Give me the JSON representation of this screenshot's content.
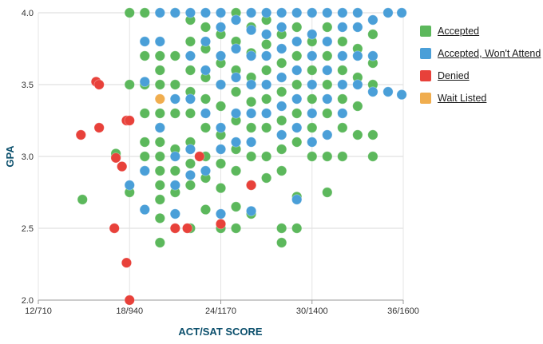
{
  "chart_data": {
    "type": "scatter",
    "xlabel": "ACT/SAT SCORE",
    "ylabel": "GPA",
    "xlim": [
      12,
      36
    ],
    "ylim": [
      2.0,
      4.0
    ],
    "x_ticks": [
      12,
      18,
      24,
      30,
      36
    ],
    "x_tick_labels": [
      "12/710",
      "18/940",
      "24/1170",
      "30/1400",
      "36/1600"
    ],
    "y_ticks": [
      2.0,
      2.5,
      3.0,
      3.5,
      4.0
    ],
    "y_tick_labels": [
      "2.0",
      "2.5",
      "3.0",
      "3.5",
      "4.0"
    ],
    "grid": true,
    "legend_position": "right",
    "series": [
      {
        "name": "Accepted",
        "color": "#5cb85c",
        "points": [
          [
            14.9,
            2.7
          ],
          [
            17.1,
            3.0
          ],
          [
            17.1,
            3.02
          ],
          [
            18.0,
            2.75
          ],
          [
            18.0,
            3.5
          ],
          [
            18.0,
            4.0
          ],
          [
            19.0,
            2.9
          ],
          [
            19.0,
            3.0
          ],
          [
            19.0,
            3.1
          ],
          [
            19.0,
            3.3
          ],
          [
            19.0,
            3.5
          ],
          [
            19.0,
            3.7
          ],
          [
            19.0,
            4.0
          ],
          [
            20.0,
            2.4
          ],
          [
            20.0,
            2.57
          ],
          [
            20.0,
            2.7
          ],
          [
            20.0,
            2.8
          ],
          [
            20.0,
            2.9
          ],
          [
            20.0,
            3.0
          ],
          [
            20.0,
            3.1
          ],
          [
            20.0,
            3.2
          ],
          [
            20.0,
            3.3
          ],
          [
            20.0,
            3.5
          ],
          [
            20.0,
            3.6
          ],
          [
            20.0,
            3.7
          ],
          [
            21.0,
            2.75
          ],
          [
            21.0,
            2.9
          ],
          [
            21.0,
            3.05
          ],
          [
            21.0,
            3.3
          ],
          [
            21.0,
            3.5
          ],
          [
            21.0,
            3.7
          ],
          [
            21.0,
            4.0
          ],
          [
            22.0,
            2.5
          ],
          [
            22.0,
            2.8
          ],
          [
            22.0,
            2.95
          ],
          [
            22.0,
            3.1
          ],
          [
            22.0,
            3.3
          ],
          [
            22.0,
            3.45
          ],
          [
            22.0,
            3.6
          ],
          [
            22.0,
            3.8
          ],
          [
            22.0,
            3.95
          ],
          [
            23.0,
            2.63
          ],
          [
            23.0,
            2.85
          ],
          [
            23.0,
            3.0
          ],
          [
            23.0,
            3.2
          ],
          [
            23.0,
            3.4
          ],
          [
            23.0,
            3.55
          ],
          [
            23.0,
            3.75
          ],
          [
            23.0,
            3.9
          ],
          [
            24.0,
            2.5
          ],
          [
            24.0,
            2.78
          ],
          [
            24.0,
            2.95
          ],
          [
            24.0,
            3.15
          ],
          [
            24.0,
            3.35
          ],
          [
            24.0,
            3.5
          ],
          [
            24.0,
            3.65
          ],
          [
            24.0,
            3.85
          ],
          [
            25.0,
            2.5
          ],
          [
            25.0,
            2.65
          ],
          [
            25.0,
            2.9
          ],
          [
            25.0,
            3.05
          ],
          [
            25.0,
            3.25
          ],
          [
            25.0,
            3.45
          ],
          [
            25.0,
            3.6
          ],
          [
            25.0,
            3.8
          ],
          [
            25.0,
            4.0
          ],
          [
            26.0,
            2.6
          ],
          [
            26.0,
            2.8
          ],
          [
            26.0,
            3.0
          ],
          [
            26.0,
            3.2
          ],
          [
            26.0,
            3.38
          ],
          [
            26.0,
            3.55
          ],
          [
            26.0,
            3.72
          ],
          [
            26.0,
            3.9
          ],
          [
            27.0,
            2.85
          ],
          [
            27.0,
            3.0
          ],
          [
            27.0,
            3.2
          ],
          [
            27.0,
            3.4
          ],
          [
            27.0,
            3.6
          ],
          [
            27.0,
            3.78
          ],
          [
            27.0,
            3.95
          ],
          [
            28.0,
            2.4
          ],
          [
            28.0,
            2.5
          ],
          [
            28.0,
            2.9
          ],
          [
            28.0,
            3.05
          ],
          [
            28.0,
            3.25
          ],
          [
            28.0,
            3.45
          ],
          [
            28.0,
            3.65
          ],
          [
            28.0,
            3.85
          ],
          [
            29.0,
            2.5
          ],
          [
            29.0,
            2.72
          ],
          [
            29.0,
            3.1
          ],
          [
            29.0,
            3.3
          ],
          [
            29.0,
            3.5
          ],
          [
            29.0,
            3.7
          ],
          [
            29.0,
            3.9
          ],
          [
            30.0,
            3.0
          ],
          [
            30.0,
            3.2
          ],
          [
            30.0,
            3.4
          ],
          [
            30.0,
            3.6
          ],
          [
            30.0,
            3.8
          ],
          [
            31.0,
            2.75
          ],
          [
            31.0,
            3.0
          ],
          [
            31.0,
            3.3
          ],
          [
            31.0,
            3.5
          ],
          [
            31.0,
            3.7
          ],
          [
            31.0,
            3.9
          ],
          [
            32.0,
            3.0
          ],
          [
            32.0,
            3.2
          ],
          [
            32.0,
            3.4
          ],
          [
            32.0,
            3.6
          ],
          [
            32.0,
            3.8
          ],
          [
            33.0,
            3.15
          ],
          [
            33.0,
            3.35
          ],
          [
            33.0,
            3.55
          ],
          [
            33.0,
            3.75
          ],
          [
            34.0,
            3.0
          ],
          [
            34.0,
            3.15
          ],
          [
            34.0,
            3.5
          ],
          [
            34.0,
            3.65
          ],
          [
            34.0,
            3.85
          ]
        ]
      },
      {
        "name": "Accepted, Won't Attend",
        "color": "#4a9fd8",
        "points": [
          [
            18.0,
            2.8
          ],
          [
            19.0,
            2.63
          ],
          [
            19.0,
            2.9
          ],
          [
            19.0,
            3.52
          ],
          [
            19.0,
            3.8
          ],
          [
            20.0,
            3.2
          ],
          [
            20.0,
            3.8
          ],
          [
            20.0,
            4.0
          ],
          [
            21.0,
            2.6
          ],
          [
            21.0,
            2.8
          ],
          [
            21.0,
            3.0
          ],
          [
            21.0,
            3.4
          ],
          [
            21.0,
            4.0
          ],
          [
            22.0,
            2.87
          ],
          [
            22.0,
            3.05
          ],
          [
            22.0,
            3.4
          ],
          [
            22.0,
            3.7
          ],
          [
            22.0,
            4.0
          ],
          [
            23.0,
            2.9
          ],
          [
            23.0,
            3.3
          ],
          [
            23.0,
            3.6
          ],
          [
            23.0,
            3.8
          ],
          [
            23.0,
            4.0
          ],
          [
            24.0,
            2.6
          ],
          [
            24.0,
            3.05
          ],
          [
            24.0,
            3.2
          ],
          [
            24.0,
            3.5
          ],
          [
            24.0,
            3.7
          ],
          [
            24.0,
            3.9
          ],
          [
            24.0,
            4.0
          ],
          [
            25.0,
            3.1
          ],
          [
            25.0,
            3.3
          ],
          [
            25.0,
            3.55
          ],
          [
            25.0,
            3.75
          ],
          [
            25.0,
            3.95
          ],
          [
            26.0,
            2.62
          ],
          [
            26.0,
            3.1
          ],
          [
            26.0,
            3.3
          ],
          [
            26.0,
            3.5
          ],
          [
            26.0,
            3.7
          ],
          [
            26.0,
            3.88
          ],
          [
            26.0,
            4.0
          ],
          [
            27.0,
            3.3
          ],
          [
            27.0,
            3.5
          ],
          [
            27.0,
            3.7
          ],
          [
            27.0,
            3.85
          ],
          [
            27.0,
            4.0
          ],
          [
            28.0,
            3.15
          ],
          [
            28.0,
            3.35
          ],
          [
            28.0,
            3.55
          ],
          [
            28.0,
            3.75
          ],
          [
            28.0,
            3.9
          ],
          [
            28.0,
            4.0
          ],
          [
            29.0,
            2.7
          ],
          [
            29.0,
            3.2
          ],
          [
            29.0,
            3.4
          ],
          [
            29.0,
            3.6
          ],
          [
            29.0,
            3.8
          ],
          [
            29.0,
            4.0
          ],
          [
            30.0,
            3.1
          ],
          [
            30.0,
            3.3
          ],
          [
            30.0,
            3.5
          ],
          [
            30.0,
            3.7
          ],
          [
            30.0,
            3.85
          ],
          [
            30.0,
            4.0
          ],
          [
            31.0,
            3.15
          ],
          [
            31.0,
            3.4
          ],
          [
            31.0,
            3.6
          ],
          [
            31.0,
            3.8
          ],
          [
            31.0,
            4.0
          ],
          [
            32.0,
            3.3
          ],
          [
            32.0,
            3.5
          ],
          [
            32.0,
            3.7
          ],
          [
            32.0,
            3.9
          ],
          [
            32.0,
            4.0
          ],
          [
            33.0,
            3.5
          ],
          [
            33.0,
            3.7
          ],
          [
            33.0,
            3.9
          ],
          [
            33.0,
            4.0
          ],
          [
            34.0,
            3.45
          ],
          [
            34.0,
            3.7
          ],
          [
            34.0,
            3.95
          ],
          [
            35.0,
            3.45
          ],
          [
            35.0,
            4.0
          ],
          [
            35.9,
            3.43
          ],
          [
            35.9,
            4.0
          ]
        ]
      },
      {
        "name": "Denied",
        "color": "#e8413a",
        "points": [
          [
            14.8,
            3.15
          ],
          [
            15.8,
            3.52
          ],
          [
            16.0,
            3.5
          ],
          [
            16.0,
            3.2
          ],
          [
            17.0,
            2.5
          ],
          [
            17.1,
            2.99
          ],
          [
            17.5,
            2.93
          ],
          [
            17.8,
            3.25
          ],
          [
            18.0,
            3.25
          ],
          [
            17.8,
            2.26
          ],
          [
            18.0,
            2.0
          ],
          [
            21.0,
            2.5
          ],
          [
            21.8,
            2.5
          ],
          [
            22.6,
            3.0
          ],
          [
            24.0,
            2.53
          ],
          [
            26.0,
            2.8
          ]
        ]
      },
      {
        "name": "Wait Listed",
        "color": "#f0ad4e",
        "points": [
          [
            20.0,
            3.4
          ]
        ]
      }
    ]
  }
}
